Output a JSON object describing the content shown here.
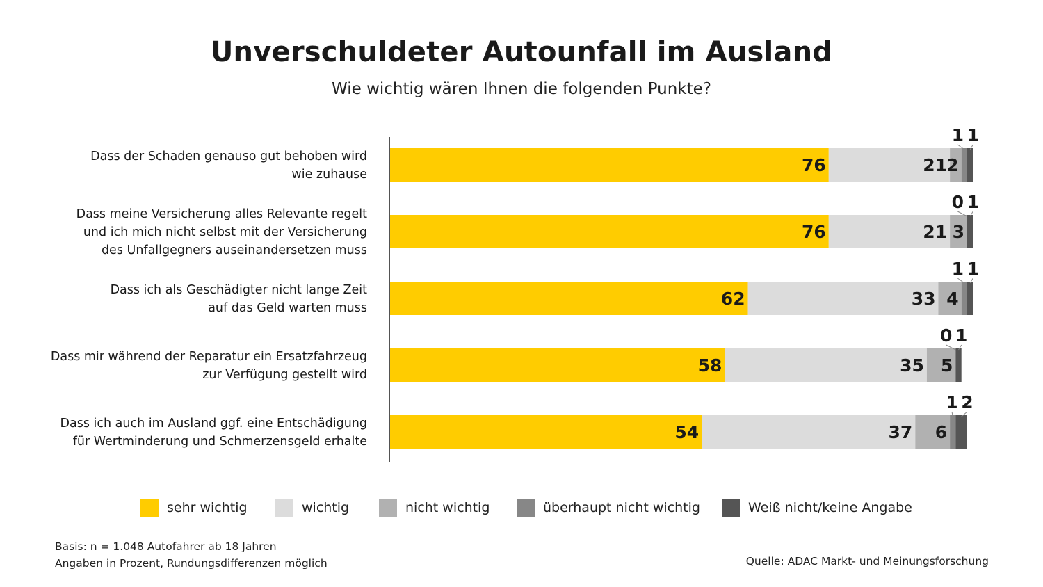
{
  "chart_data": {
    "type": "bar",
    "stacked": true,
    "orientation": "horizontal",
    "title": "Unverschuldeter Autounfall im Ausland",
    "subtitle": "Wie wichtig wären Ihnen die folgenden Punkte?",
    "categories": [
      [
        "Dass der Schaden genauso gut behoben wird",
        "wie zuhause"
      ],
      [
        "Dass meine Versicherung alles Relevante regelt",
        "und ich mich nicht selbst mit der Versicherung",
        "des Unfallgegners auseinandersetzen muss"
      ],
      [
        "Dass ich als Geschädigter nicht lange Zeit",
        "auf das Geld warten muss"
      ],
      [
        "Dass mir während der Reparatur ein Ersatzfahrzeug",
        "zur Verfügung gestellt wird"
      ],
      [
        "Dass ich auch im Ausland ggf. eine Entschädigung",
        "für Wertminderung und Schmerzensgeld erhalte"
      ]
    ],
    "series": [
      {
        "name": "sehr wichtig",
        "color": "#ffcc00",
        "values": [
          76,
          76,
          62,
          58,
          54
        ]
      },
      {
        "name": "wichtig",
        "color": "#dcdcdc",
        "values": [
          21,
          21,
          33,
          35,
          37
        ]
      },
      {
        "name": "nicht wichtig",
        "color": "#b1b1b1",
        "values": [
          2,
          3,
          4,
          5,
          6
        ]
      },
      {
        "name": "überhaupt nicht wichtig",
        "color": "#878787",
        "values": [
          1,
          0,
          1,
          0,
          1
        ]
      },
      {
        "name": "Weiß nicht/keine Angabe",
        "color": "#555555",
        "values": [
          1,
          1,
          1,
          1,
          2
        ]
      }
    ],
    "xlim": [
      0,
      101
    ],
    "legend_position": "bottom",
    "grid": false,
    "unit": "%"
  },
  "footnote": {
    "line1": "Basis: n = 1.048 Autofahrer ab 18 Jahren",
    "line2": "Angaben in Prozent, Rundungsdifferenzen möglich"
  },
  "source": "Quelle: ADAC Markt- und Meinungsforschung"
}
